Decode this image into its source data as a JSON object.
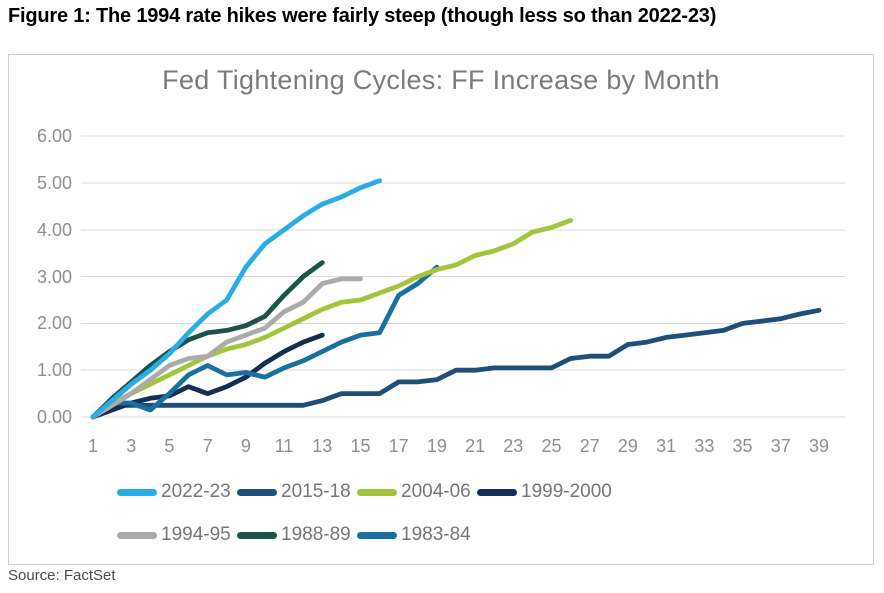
{
  "page": {
    "figure_title": "Figure 1: The 1994 rate hikes were fairly steep (though less so than 2022-23)",
    "source": "Source: FactSet"
  },
  "chart_data": {
    "type": "line",
    "title": "Fed Tightening Cycles: FF Increase by Month",
    "xlabel": "",
    "ylabel": "",
    "xlim": [
      1,
      39
    ],
    "ylim": [
      0,
      6
    ],
    "x_ticks": [
      1,
      3,
      5,
      7,
      9,
      11,
      13,
      15,
      17,
      19,
      21,
      23,
      25,
      27,
      29,
      31,
      33,
      35,
      37,
      39
    ],
    "y_tick_labels": [
      "0.00",
      "1.00",
      "2.00",
      "3.00",
      "4.00",
      "5.00",
      "6.00"
    ],
    "grid": "horizontal",
    "grid_color": "#d9d9d9",
    "legend_position": "bottom",
    "legend_rows": [
      [
        0,
        1,
        2,
        3
      ],
      [
        4,
        5,
        6
      ]
    ],
    "z_order": [
      1,
      3,
      6,
      2,
      4,
      5,
      0
    ],
    "x_start_month": 1,
    "series": [
      {
        "name": "2022-23",
        "color": "#28ade4",
        "values": [
          0,
          0.35,
          0.7,
          1.0,
          1.35,
          1.8,
          2.2,
          2.5,
          3.2,
          3.7,
          4.0,
          4.3,
          4.55,
          4.7,
          4.9,
          5.05
        ]
      },
      {
        "name": "2015-18",
        "color": "#1f4e79",
        "values": [
          0,
          0.25,
          0.25,
          0.25,
          0.25,
          0.25,
          0.25,
          0.25,
          0.25,
          0.25,
          0.25,
          0.25,
          0.35,
          0.5,
          0.5,
          0.5,
          0.75,
          0.75,
          0.8,
          1.0,
          1.0,
          1.05,
          1.05,
          1.05,
          1.05,
          1.25,
          1.3,
          1.3,
          1.55,
          1.6,
          1.7,
          1.75,
          1.8,
          1.85,
          2.0,
          2.05,
          2.1,
          2.2,
          2.28
        ]
      },
      {
        "name": "2004-06",
        "color": "#a3c53d",
        "values": [
          0,
          0.3,
          0.5,
          0.7,
          0.9,
          1.1,
          1.3,
          1.45,
          1.55,
          1.7,
          1.9,
          2.1,
          2.3,
          2.45,
          2.5,
          2.65,
          2.8,
          3.0,
          3.15,
          3.25,
          3.45,
          3.55,
          3.7,
          3.95,
          4.05,
          4.2
        ]
      },
      {
        "name": "1999-2000",
        "color": "#142f56",
        "values": [
          0,
          0.15,
          0.3,
          0.4,
          0.45,
          0.65,
          0.5,
          0.65,
          0.85,
          1.15,
          1.4,
          1.6,
          1.75
        ]
      },
      {
        "name": "1994-95",
        "color": "#ababab",
        "values": [
          0,
          0.25,
          0.5,
          0.8,
          1.1,
          1.25,
          1.3,
          1.6,
          1.75,
          1.9,
          2.25,
          2.45,
          2.85,
          2.95,
          2.95
        ]
      },
      {
        "name": "1988-89",
        "color": "#1d5348",
        "values": [
          0,
          0.4,
          0.75,
          1.1,
          1.4,
          1.65,
          1.8,
          1.85,
          1.95,
          2.15,
          2.6,
          3.0,
          3.3
        ]
      },
      {
        "name": "1983-84",
        "color": "#1a6f9e",
        "values": [
          0,
          0.3,
          0.3,
          0.15,
          0.5,
          0.9,
          1.1,
          0.9,
          0.95,
          0.85,
          1.05,
          1.2,
          1.4,
          1.6,
          1.75,
          1.8,
          2.6,
          2.85,
          3.2
        ]
      }
    ]
  }
}
